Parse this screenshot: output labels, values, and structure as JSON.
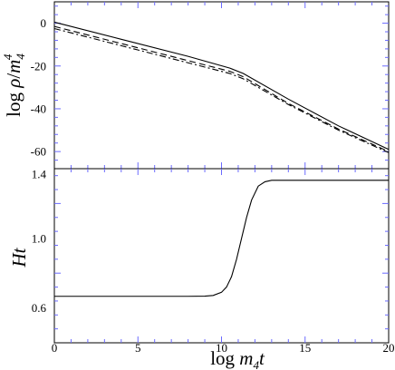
{
  "chart_data": [
    {
      "type": "line",
      "ylabel": "log ρ/m44",
      "ylabel_parts": {
        "prefix": "log ",
        "var": "ρ",
        "slash": "/",
        "base": "m",
        "sub": "4",
        "sup": "4"
      },
      "xlim": [
        0,
        20
      ],
      "ylim": [
        -68,
        10
      ],
      "yticks": [
        0,
        -20,
        -40,
        -60
      ],
      "ytick_labels": [
        "0",
        "-20",
        "-40",
        "-60"
      ],
      "grid": false,
      "series": [
        {
          "style": "solid",
          "x": [
            0,
            4,
            8,
            10.5,
            11.3,
            14,
            17,
            20
          ],
          "y": [
            0.5,
            -7.5,
            -15.5,
            -21,
            -23.5,
            -35.5,
            -48,
            -59
          ]
        },
        {
          "style": "dashed",
          "x": [
            0,
            4,
            8,
            10.5,
            11.3,
            14,
            17,
            20
          ],
          "y": [
            -1.5,
            -9.5,
            -17.5,
            -22.5,
            -25,
            -37.5,
            -49.5,
            -60
          ]
        },
        {
          "style": "dashdot",
          "x": [
            0,
            4,
            8,
            10.5,
            11.3,
            14,
            17,
            20
          ],
          "y": [
            -2.5,
            -10.5,
            -18.5,
            -23.5,
            -26,
            -38,
            -50,
            -60.5
          ]
        }
      ]
    },
    {
      "type": "line",
      "xlabel": "log m4t",
      "xlabel_parts": {
        "prefix": "log ",
        "base": "m",
        "sub": "4",
        "var": "t"
      },
      "ylabel": "Ht",
      "xlim": [
        0,
        20
      ],
      "ylim": [
        0.4,
        1.4
      ],
      "xticks": [
        0,
        5,
        10,
        15,
        20
      ],
      "xtick_labels": [
        "0",
        "5",
        "10",
        "15",
        "20"
      ],
      "yticks": [
        0.6,
        1.0,
        1.4
      ],
      "ytick_labels": [
        "0.6",
        "1.0",
        "1.4"
      ],
      "grid": false,
      "series": [
        {
          "style": "solid",
          "x": [
            0,
            8,
            9,
            9.5,
            10,
            10.3,
            10.6,
            10.9,
            11.2,
            11.5,
            11.8,
            12.2,
            12.6,
            13,
            20
          ],
          "y": [
            0.667,
            0.667,
            0.668,
            0.672,
            0.69,
            0.72,
            0.78,
            0.88,
            1.0,
            1.12,
            1.22,
            1.3,
            1.325,
            1.333,
            1.333
          ]
        }
      ]
    }
  ]
}
